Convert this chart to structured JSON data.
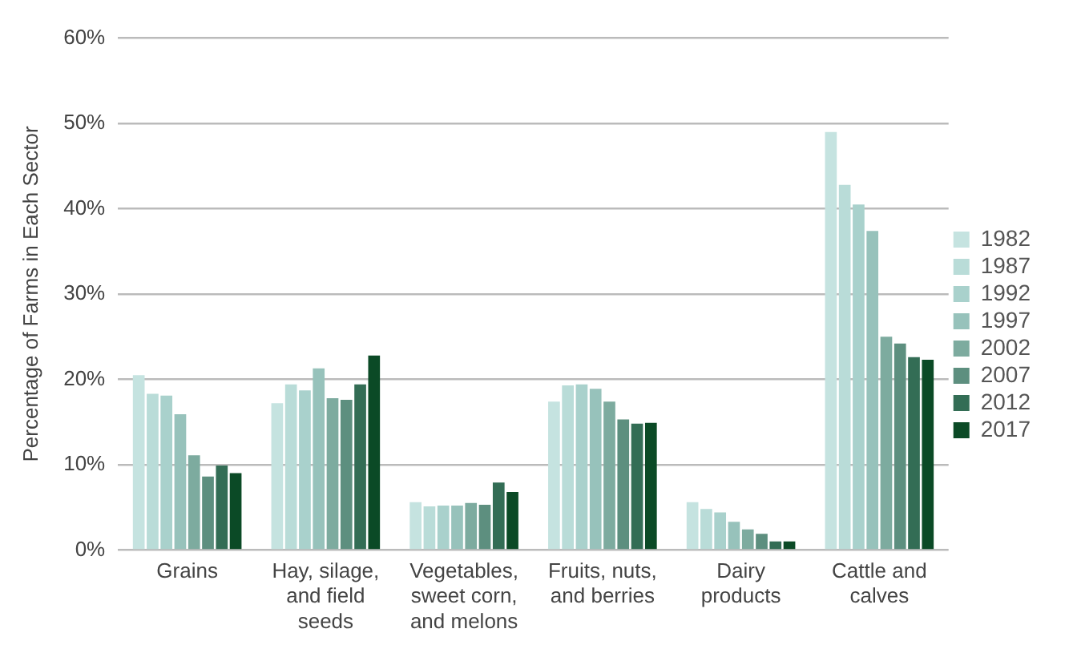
{
  "chart_data": {
    "type": "bar",
    "ylabel": "Percentage of Farms in Each Sector",
    "categories": [
      "Grains",
      "Hay, silage, and field seeds",
      "Vegetables, sweet corn, and melons",
      "Fruits, nuts, and berries",
      "Dairy products",
      "Cattle and calves"
    ],
    "series": [
      {
        "name": "1982",
        "color": "#c5e3e0",
        "values": [
          20.5,
          17.2,
          5.6,
          17.4,
          5.6,
          49.0
        ]
      },
      {
        "name": "1987",
        "color": "#b9dcd8",
        "values": [
          18.3,
          19.4,
          5.1,
          19.3,
          4.8,
          42.8
        ]
      },
      {
        "name": "1992",
        "color": "#a9d1cc",
        "values": [
          18.1,
          18.7,
          5.2,
          19.4,
          4.4,
          40.5
        ]
      },
      {
        "name": "1997",
        "color": "#97c2bb",
        "values": [
          15.9,
          21.3,
          5.2,
          18.9,
          3.3,
          37.4
        ]
      },
      {
        "name": "2002",
        "color": "#7dab9f",
        "values": [
          11.1,
          17.8,
          5.5,
          17.4,
          2.4,
          25.0
        ]
      },
      {
        "name": "2007",
        "color": "#5d8f7f",
        "values": [
          8.6,
          17.6,
          5.3,
          15.3,
          1.9,
          24.2
        ]
      },
      {
        "name": "2012",
        "color": "#336d55",
        "values": [
          9.9,
          19.4,
          7.9,
          14.8,
          1.0,
          22.6
        ]
      },
      {
        "name": "2017",
        "color": "#0b4a26",
        "values": [
          9.0,
          22.8,
          6.8,
          14.9,
          1.0,
          22.3
        ]
      }
    ],
    "ylim": [
      0,
      60
    ],
    "yticks": [
      {
        "value": 0,
        "label": "0%"
      },
      {
        "value": 10,
        "label": "10%"
      },
      {
        "value": 20,
        "label": "20%"
      },
      {
        "value": 30,
        "label": "30%"
      },
      {
        "value": 40,
        "label": "40%"
      },
      {
        "value": 50,
        "label": "50%"
      },
      {
        "value": 60,
        "label": "60%"
      }
    ],
    "grid": "y",
    "legend": "right"
  }
}
